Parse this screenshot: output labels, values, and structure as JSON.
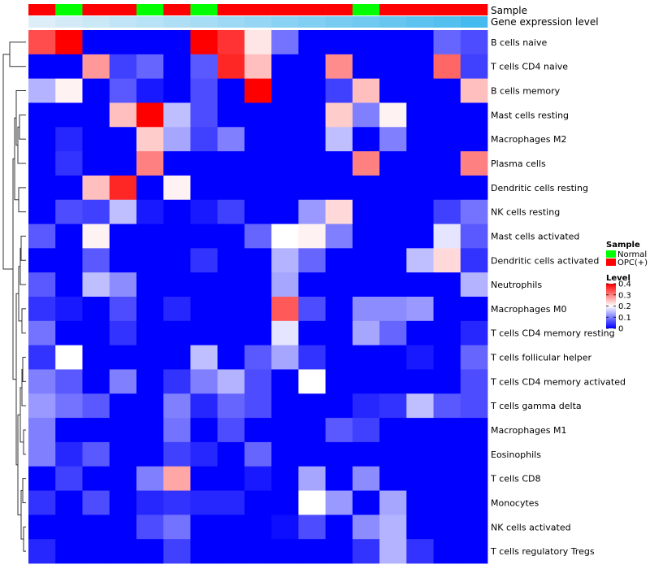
{
  "colors": {
    "low": "#0000FF",
    "mid": "#FFFFFF",
    "high": "#FF0000",
    "normal": "#00FF00",
    "opc": "#FF0000",
    "expr_light": "#DDEEF8",
    "expr_dark": "#44BBEE",
    "dendrogram": "#333333"
  },
  "chart_data": {
    "type": "heatmap",
    "annotations": {
      "sample_label": "Sample",
      "expression_label": "Gene expression level",
      "samples": [
        "OPC(+)",
        "Normal",
        "OPC(+)",
        "OPC(+)",
        "Normal",
        "OPC(+)",
        "Normal",
        "OPC(+)",
        "OPC(+)",
        "OPC(+)",
        "OPC(+)",
        "OPC(+)",
        "Normal",
        "OPC(+)",
        "OPC(+)",
        "OPC(+)",
        "OPC(+)"
      ],
      "expression": [
        0.0,
        0.06,
        0.12,
        0.18,
        0.24,
        0.3,
        0.36,
        0.42,
        0.48,
        0.54,
        0.6,
        0.66,
        0.72,
        0.78,
        0.84,
        0.9,
        1.0
      ]
    },
    "rows": [
      "B cells naive",
      "T cells CD4 naive",
      "B cells memory",
      "Mast cells resting",
      "Macrophages M2",
      "Plasma cells",
      "Dendritic cells resting",
      "NK cells resting",
      "Mast cells activated",
      "Dendritic cells activated",
      "Neutrophils",
      "Macrophages M0",
      "T cells CD4 memory resting",
      "T cells follicular helper",
      "T cells CD4 memory activated",
      "T cells gamma delta",
      "Macrophages M1",
      "Eosinophils",
      "T cells CD8",
      "Monocytes",
      "NK cells activated",
      "T cells regulatory  Tregs"
    ],
    "values": [
      [
        0.34,
        0.4,
        0,
        0,
        0,
        0,
        0.4,
        0.36,
        0.22,
        0.09,
        0,
        0,
        0,
        0,
        0,
        0.08,
        0.06
      ],
      [
        0,
        0,
        0.28,
        0.05,
        0.08,
        0,
        0.07,
        0.37,
        0.25,
        0,
        0,
        0.29,
        0,
        0,
        0,
        0.32,
        0.05
      ],
      [
        0.14,
        0.21,
        0,
        0.07,
        0.02,
        0,
        0.06,
        0,
        0.4,
        0,
        0,
        0.05,
        0.25,
        0,
        0,
        0,
        0.25
      ],
      [
        0,
        0,
        0,
        0.25,
        0.4,
        0.15,
        0.06,
        0,
        0,
        0,
        0,
        0.24,
        0.1,
        0.21,
        0,
        0,
        0
      ],
      [
        0,
        0.03,
        0,
        0,
        0.24,
        0.13,
        0.05,
        0.1,
        0,
        0,
        0,
        0.15,
        0,
        0.1,
        0,
        0,
        0
      ],
      [
        0,
        0.04,
        0,
        0,
        0.3,
        0,
        0,
        0,
        0,
        0,
        0,
        0,
        0.3,
        0,
        0,
        0,
        0.3
      ],
      [
        0,
        0,
        0.25,
        0.37,
        0,
        0.21,
        0,
        0,
        0,
        0,
        0,
        0,
        0,
        0,
        0,
        0,
        0
      ],
      [
        0,
        0.06,
        0.05,
        0.15,
        0.02,
        0,
        0.02,
        0.05,
        0,
        0,
        0.12,
        0.23,
        0,
        0,
        0,
        0.05,
        0.09
      ],
      [
        0.07,
        0,
        0.21,
        0,
        0,
        0,
        0,
        0,
        0.08,
        0.2,
        0.21,
        0.1,
        0,
        0,
        0,
        0.18,
        0.07
      ],
      [
        0,
        0,
        0.07,
        0,
        0,
        0,
        0.04,
        0,
        0,
        0.14,
        0.08,
        0,
        0,
        0,
        0.15,
        0.23,
        0.04
      ],
      [
        0.07,
        0,
        0.15,
        0.11,
        0,
        0,
        0,
        0,
        0,
        0.13,
        0,
        0,
        0,
        0,
        0,
        0,
        0.14
      ],
      [
        0.04,
        0.02,
        0,
        0.06,
        0,
        0.03,
        0,
        0,
        0,
        0.33,
        0.06,
        0,
        0.11,
        0.11,
        0.12,
        0,
        0
      ],
      [
        0.09,
        0,
        0,
        0.04,
        0,
        0,
        0,
        0,
        0,
        0.18,
        0,
        0,
        0.13,
        0.08,
        0,
        0,
        0.03
      ],
      [
        0.04,
        0.2,
        0,
        0,
        0,
        0,
        0.15,
        0,
        0.07,
        0.13,
        0.04,
        0,
        0,
        0,
        0.02,
        0,
        0.08
      ],
      [
        0.1,
        0.07,
        0,
        0.1,
        0,
        0.04,
        0.1,
        0.14,
        0.06,
        0,
        0.2,
        0,
        0,
        0,
        0,
        0,
        0.06
      ],
      [
        0.12,
        0.09,
        0.07,
        0,
        0,
        0.1,
        0.03,
        0.08,
        0.06,
        0,
        0,
        0,
        0.03,
        0.04,
        0.15,
        0.07,
        0.06
      ],
      [
        0.1,
        0,
        0,
        0,
        0,
        0.09,
        0,
        0.06,
        0,
        0,
        0,
        0.07,
        0.05,
        0,
        0,
        0,
        0
      ],
      [
        0.1,
        0.03,
        0.07,
        0,
        0,
        0.05,
        0.03,
        0,
        0.08,
        0,
        0,
        0,
        0,
        0,
        0,
        0,
        0
      ],
      [
        0,
        0.05,
        0,
        0,
        0.1,
        0.27,
        0,
        0,
        0.02,
        0,
        0.13,
        0,
        0.11,
        0,
        0,
        0,
        0
      ],
      [
        0.04,
        0,
        0.06,
        0,
        0.03,
        0.04,
        0.03,
        0.03,
        0,
        0,
        0.2,
        0.12,
        0,
        0.13,
        0,
        0,
        0
      ],
      [
        0,
        0,
        0,
        0,
        0.06,
        0.09,
        0,
        0,
        0,
        0.01,
        0.06,
        0,
        0.11,
        0.14,
        0,
        0,
        0
      ],
      [
        0.03,
        0,
        0,
        0,
        0,
        0.05,
        0,
        0,
        0,
        0,
        0,
        0,
        0.04,
        0.14,
        0.04,
        0,
        0
      ]
    ],
    "legend": {
      "sample_title": "Sample",
      "sample_entries": [
        {
          "label": "Normal",
          "color": "#00FF00"
        },
        {
          "label": "OPC(+)",
          "color": "#FF0000"
        }
      ],
      "level_title": "Level",
      "ticks": [
        {
          "value": 0.4,
          "label": "0.4"
        },
        {
          "value": 0.3,
          "label": "0.3"
        },
        {
          "value": 0.2,
          "label": "0.2"
        },
        {
          "value": 0.1,
          "label": "0.1"
        },
        {
          "value": 0,
          "label": "0"
        }
      ],
      "range": [
        0,
        0.4
      ]
    }
  }
}
